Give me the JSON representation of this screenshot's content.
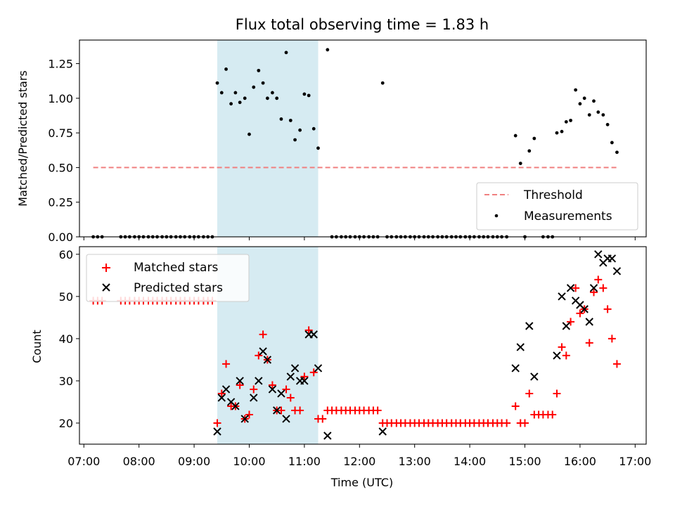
{
  "figure_title": "Flux total observing time = 1.83 h",
  "colors": {
    "threshold": "#f08080",
    "measurement": "#000000",
    "matched": "#ff0000",
    "predicted": "#000000",
    "highlight": "#add8e6"
  },
  "chart_data": [
    {
      "type": "scatter",
      "title": "Flux total observing time = 1.83 h",
      "xlabel": "",
      "ylabel": "Matched/Predicted stars",
      "xlim": [
        6.92,
        17.2
      ],
      "ylim": [
        0,
        1.42
      ],
      "yticks": [
        0.0,
        0.25,
        0.5,
        0.75,
        1.0,
        1.25
      ],
      "ytick_labels": [
        "0.00",
        "0.25",
        "0.50",
        "0.75",
        "1.00",
        "1.25"
      ],
      "highlight_span": [
        9.42,
        11.25
      ],
      "legend": {
        "placement": "lower-right",
        "entries": [
          "Threshold",
          "Measurements"
        ]
      },
      "threshold": {
        "name": "Threshold",
        "x": [
          7.17,
          16.67
        ],
        "y": [
          0.5,
          0.5
        ]
      },
      "series": [
        {
          "name": "Measurements",
          "x": [
            7.17,
            7.25,
            7.33,
            7.67,
            7.75,
            7.83,
            7.92,
            8.0,
            8.08,
            8.17,
            8.25,
            8.33,
            8.42,
            8.5,
            8.58,
            8.67,
            8.75,
            8.83,
            8.92,
            9.0,
            9.08,
            9.17,
            9.25,
            9.33,
            9.42,
            9.5,
            9.58,
            9.67,
            9.75,
            9.83,
            9.92,
            10.0,
            10.08,
            10.17,
            10.25,
            10.33,
            10.42,
            10.5,
            10.58,
            10.67,
            10.75,
            10.83,
            10.92,
            11.0,
            11.08,
            11.17,
            11.25,
            11.42,
            11.5,
            11.58,
            11.67,
            11.75,
            11.83,
            11.92,
            12.0,
            12.08,
            12.17,
            12.25,
            12.33,
            12.42,
            12.5,
            12.58,
            12.67,
            12.75,
            12.83,
            12.92,
            13.0,
            13.08,
            13.17,
            13.25,
            13.33,
            13.42,
            13.5,
            13.58,
            13.67,
            13.75,
            13.83,
            13.92,
            14.0,
            14.08,
            14.17,
            14.25,
            14.33,
            14.42,
            14.5,
            14.58,
            14.67,
            14.83,
            14.92,
            15.0,
            15.08,
            15.17,
            15.33,
            15.42,
            15.5,
            15.58,
            15.67,
            15.75,
            15.83,
            15.92,
            16.0,
            16.08,
            16.17,
            16.25,
            16.33,
            16.42,
            16.5,
            16.58,
            16.67
          ],
          "y": [
            0,
            0,
            0,
            0,
            0,
            0,
            0,
            0,
            0,
            0,
            0,
            0,
            0,
            0,
            0,
            0,
            0,
            0,
            0,
            0,
            0,
            0,
            0,
            0,
            1.11,
            1.04,
            1.21,
            0.96,
            1.04,
            0.97,
            1.0,
            0.74,
            1.08,
            1.2,
            1.11,
            1.0,
            1.04,
            1.0,
            0.85,
            1.33,
            0.84,
            0.7,
            0.77,
            1.03,
            1.02,
            0.78,
            0.64,
            1.35,
            0,
            0,
            0,
            0,
            0,
            0,
            0,
            0,
            0,
            0,
            0,
            1.11,
            0,
            0,
            0,
            0,
            0,
            0,
            0,
            0,
            0,
            0,
            0,
            0,
            0,
            0,
            0,
            0,
            0,
            0,
            0,
            0,
            0,
            0,
            0,
            0,
            0,
            0,
            0,
            0.73,
            0.53,
            0,
            0.62,
            0.71,
            0,
            0,
            0,
            0.75,
            0.76,
            0.83,
            0.84,
            1.06,
            0.96,
            1.0,
            0.88,
            0.98,
            0.9,
            0.88,
            0.81,
            0.68,
            0.61
          ]
        }
      ]
    },
    {
      "type": "scatter",
      "title": "",
      "xlabel": "Time (UTC)",
      "ylabel": "Count",
      "xlim": [
        6.92,
        17.2
      ],
      "ylim": [
        15,
        61.8
      ],
      "yticks": [
        20,
        30,
        40,
        50,
        60
      ],
      "ytick_labels": [
        "20",
        "30",
        "40",
        "50",
        "60"
      ],
      "xticks": [
        7,
        8,
        9,
        10,
        11,
        12,
        13,
        14,
        15,
        16,
        17
      ],
      "xtick_labels": [
        "07:00",
        "08:00",
        "09:00",
        "10:00",
        "11:00",
        "12:00",
        "13:00",
        "14:00",
        "15:00",
        "16:00",
        "17:00"
      ],
      "highlight_span": [
        9.42,
        11.25
      ],
      "legend": {
        "placement": "upper-left",
        "entries": [
          "Matched stars",
          "Predicted stars"
        ]
      },
      "series": [
        {
          "name": "Matched stars",
          "marker": "plus",
          "x": [
            7.17,
            7.25,
            7.33,
            7.67,
            7.75,
            7.83,
            7.92,
            8.0,
            8.08,
            8.17,
            8.25,
            8.33,
            8.42,
            8.5,
            8.58,
            8.67,
            8.75,
            8.83,
            8.92,
            9.0,
            9.08,
            9.17,
            9.25,
            9.33,
            9.42,
            9.5,
            9.58,
            9.67,
            9.75,
            9.83,
            9.92,
            10.0,
            10.08,
            10.17,
            10.25,
            10.33,
            10.42,
            10.5,
            10.58,
            10.67,
            10.75,
            10.83,
            10.92,
            11.0,
            11.08,
            11.17,
            11.25,
            11.33,
            11.42,
            11.5,
            11.58,
            11.67,
            11.75,
            11.83,
            11.92,
            12.0,
            12.08,
            12.17,
            12.25,
            12.33,
            12.42,
            12.5,
            12.58,
            12.67,
            12.75,
            12.83,
            12.92,
            13.0,
            13.08,
            13.17,
            13.25,
            13.33,
            13.42,
            13.5,
            13.58,
            13.67,
            13.75,
            13.83,
            13.92,
            14.0,
            14.08,
            14.17,
            14.25,
            14.33,
            14.42,
            14.5,
            14.58,
            14.67,
            14.83,
            14.92,
            15.0,
            15.08,
            15.17,
            15.25,
            15.33,
            15.42,
            15.5,
            15.58,
            15.67,
            15.75,
            15.83,
            15.92,
            16.0,
            16.08,
            16.17,
            16.25,
            16.33,
            16.42,
            16.5,
            16.58,
            16.67
          ],
          "y": [
            49,
            49,
            49,
            49,
            49,
            49,
            49,
            49,
            49,
            49,
            49,
            49,
            49,
            49,
            49,
            49,
            49,
            49,
            49,
            49,
            49,
            49,
            49,
            49,
            20,
            27,
            34,
            24,
            24,
            29,
            21,
            22,
            28,
            36,
            41,
            35,
            29,
            23,
            23,
            28,
            26,
            23,
            23,
            31,
            42,
            32,
            21,
            21,
            23,
            23,
            23,
            23,
            23,
            23,
            23,
            23,
            23,
            23,
            23,
            23,
            20,
            20,
            20,
            20,
            20,
            20,
            20,
            20,
            20,
            20,
            20,
            20,
            20,
            20,
            20,
            20,
            20,
            20,
            20,
            20,
            20,
            20,
            20,
            20,
            20,
            20,
            20,
            20,
            24,
            20,
            20,
            27,
            22,
            22,
            22,
            22,
            22,
            27,
            38,
            36,
            44,
            52,
            46,
            47,
            39,
            51,
            54,
            52,
            47,
            40,
            34
          ]
        },
        {
          "name": "Predicted stars",
          "marker": "x",
          "x": [
            9.42,
            9.5,
            9.58,
            9.67,
            9.75,
            9.83,
            9.92,
            10.08,
            10.17,
            10.25,
            10.33,
            10.42,
            10.5,
            10.58,
            10.67,
            10.75,
            10.83,
            10.92,
            11.0,
            11.08,
            11.17,
            11.25,
            11.42,
            12.42,
            14.83,
            14.92,
            15.08,
            15.17,
            15.58,
            15.67,
            15.75,
            15.83,
            15.92,
            16.0,
            16.08,
            16.17,
            16.25,
            16.33,
            16.42,
            16.5,
            16.58,
            16.67
          ],
          "y": [
            18,
            26,
            28,
            25,
            24,
            30,
            21,
            26,
            30,
            37,
            35,
            28,
            23,
            27,
            21,
            31,
            33,
            30,
            30,
            41,
            41,
            33,
            17,
            18,
            33,
            38,
            43,
            31,
            36,
            50,
            43,
            52,
            49,
            48,
            47,
            44,
            52,
            60,
            58,
            59,
            59,
            56
          ]
        }
      ]
    }
  ]
}
